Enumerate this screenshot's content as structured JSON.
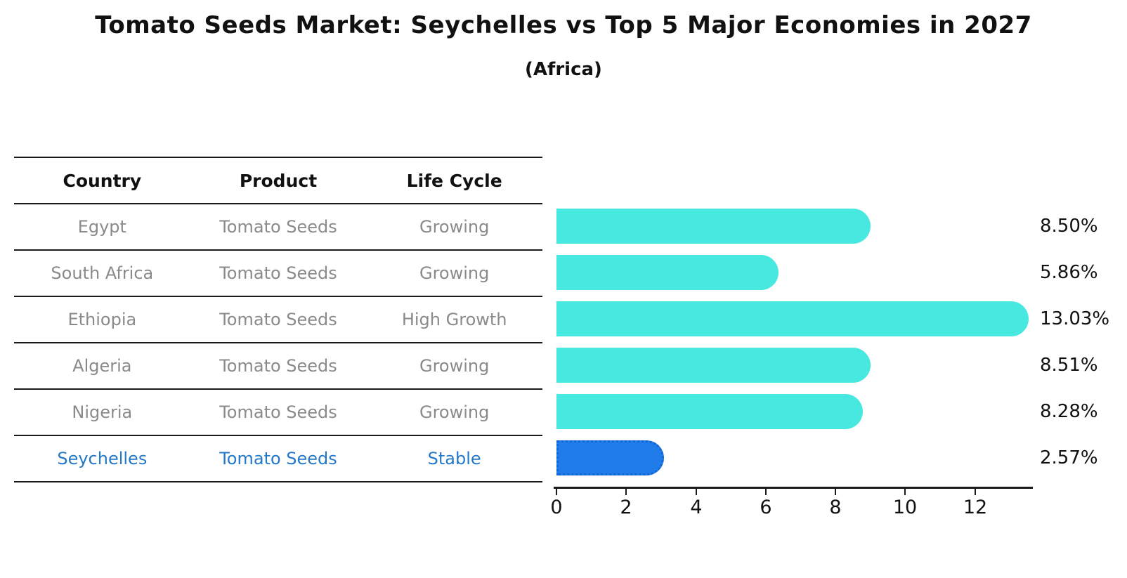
{
  "title": "Tomato Seeds Market: Seychelles vs Top 5 Major Economies in 2027",
  "subtitle": "(Africa)",
  "table": {
    "headers": [
      "Country",
      "Product",
      "Life Cycle"
    ],
    "rows": [
      {
        "country": "Egypt",
        "product": "Tomato Seeds",
        "life_cycle": "Growing",
        "highlight": false
      },
      {
        "country": "South Africa",
        "product": "Tomato Seeds",
        "life_cycle": "Growing",
        "highlight": false
      },
      {
        "country": "Ethiopia",
        "product": "Tomato Seeds",
        "life_cycle": "High Growth",
        "highlight": false
      },
      {
        "country": "Algeria",
        "product": "Tomato Seeds",
        "life_cycle": "Growing",
        "highlight": false
      },
      {
        "country": "Nigeria",
        "product": "Tomato Seeds",
        "life_cycle": "Growing",
        "highlight": false
      },
      {
        "country": "Seychelles",
        "product": "Tomato Seeds",
        "life_cycle": "Stable",
        "highlight": true
      }
    ]
  },
  "chart_data": {
    "type": "bar",
    "orientation": "horizontal",
    "title": "Tomato Seeds Market: Seychelles vs Top 5 Major Economies in 2027",
    "subtitle": "(Africa)",
    "categories": [
      "Egypt",
      "South Africa",
      "Ethiopia",
      "Algeria",
      "Nigeria",
      "Seychelles"
    ],
    "values": [
      8.5,
      5.86,
      13.03,
      8.51,
      8.28,
      2.57
    ],
    "value_labels": [
      "8.50%",
      "5.86%",
      "13.03%",
      "8.51%",
      "8.28%",
      "2.57%"
    ],
    "unit": "%",
    "x_ticks": [
      0,
      2,
      4,
      6,
      8,
      10,
      12
    ],
    "xlim": [
      0,
      13.66
    ],
    "grid": false,
    "legend": false,
    "bar_color": "#47e8e0",
    "highlight_bar_color": "#1f7ce8",
    "highlight_index": 5
  },
  "colors": {
    "bar_cyan": "#47e8e0",
    "bar_blue": "#1f7ce8",
    "highlight_text": "#2478c8",
    "row_text": "#8a8a8a",
    "heading_text": "#111111",
    "line": "#1a1a1a"
  }
}
